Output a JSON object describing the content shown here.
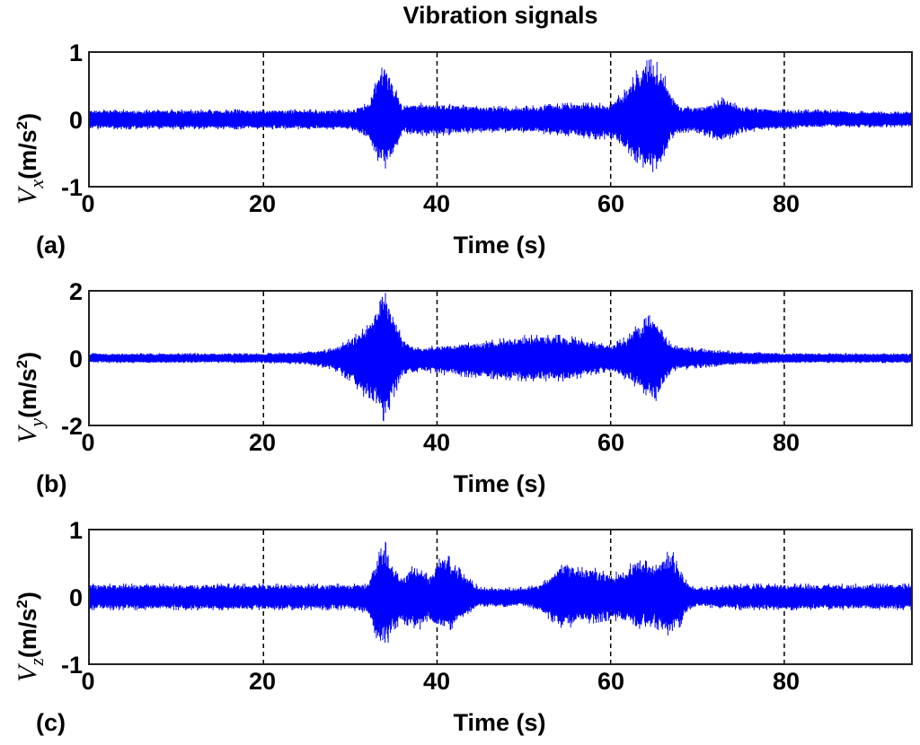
{
  "figure": {
    "title": "Vibration signals",
    "signal_color": "#0000ff",
    "grid_color": "#000000"
  },
  "panels": [
    {
      "label": "(a)",
      "ylabel_var": "V",
      "ylabel_sub": "x",
      "ylabel_unit": "(m/s",
      "ylabel_sup": "2",
      "ylabel_close": ")",
      "yticks": [
        "1",
        "0",
        "-1"
      ],
      "xticks": [
        "0",
        "20",
        "40",
        "60",
        "80"
      ],
      "xlabel": "Time (s)"
    },
    {
      "label": "(b)",
      "ylabel_var": "V",
      "ylabel_sub": "y",
      "ylabel_unit": "(m/s",
      "ylabel_sup": "2",
      "ylabel_close": ")",
      "yticks": [
        "2",
        "0",
        "-2"
      ],
      "xticks": [
        "0",
        "20",
        "40",
        "60",
        "80"
      ],
      "xlabel": "Time (s)"
    },
    {
      "label": "(c)",
      "ylabel_var": "V",
      "ylabel_sub": "z",
      "ylabel_unit": "(m/s",
      "ylabel_sup": "2",
      "ylabel_close": ")",
      "yticks": [
        "1",
        "0",
        "-1"
      ],
      "xticks": [
        "0",
        "20",
        "40",
        "60",
        "80"
      ],
      "xlabel": "Time (s)"
    }
  ],
  "chart_data": [
    {
      "type": "line",
      "title": "Vibration signals",
      "panel": "(a)",
      "xlabel": "Time (s)",
      "ylabel": "V_x (m/s^2)",
      "xlim": [
        0,
        94.6
      ],
      "ylim": [
        -1,
        1
      ],
      "xticks": [
        0,
        20,
        40,
        60,
        80
      ],
      "yticks": [
        -1,
        0,
        1
      ],
      "grid": "vertical dashed at x ticks",
      "series": [
        {
          "name": "V_x",
          "description": "noisy vibration envelope (approx. peak amplitude vs time)",
          "envelope_t": [
            0,
            10,
            20,
            30,
            32,
            33,
            34,
            35,
            36,
            38,
            40,
            45,
            50,
            55,
            58,
            60,
            62,
            63,
            64,
            65,
            66,
            67,
            68,
            70,
            72,
            73,
            75,
            80,
            85,
            90,
            94.6
          ],
          "envelope_upper": [
            0.15,
            0.15,
            0.15,
            0.15,
            0.25,
            0.6,
            0.88,
            0.55,
            0.2,
            0.25,
            0.25,
            0.2,
            0.2,
            0.25,
            0.25,
            0.25,
            0.5,
            0.75,
            0.88,
            0.92,
            0.75,
            0.4,
            0.2,
            0.2,
            0.25,
            0.35,
            0.2,
            0.15,
            0.15,
            0.12,
            0.12
          ],
          "envelope_lower": [
            -0.15,
            -0.15,
            -0.15,
            -0.15,
            -0.3,
            -0.6,
            -0.75,
            -0.55,
            -0.2,
            -0.25,
            -0.25,
            -0.2,
            -0.2,
            -0.25,
            -0.3,
            -0.3,
            -0.5,
            -0.65,
            -0.75,
            -0.8,
            -0.6,
            -0.3,
            -0.2,
            -0.2,
            -0.3,
            -0.35,
            -0.2,
            -0.15,
            -0.12,
            -0.12,
            -0.12
          ]
        }
      ]
    },
    {
      "type": "line",
      "panel": "(b)",
      "xlabel": "Time (s)",
      "ylabel": "V_y (m/s^2)",
      "xlim": [
        0,
        94.6
      ],
      "ylim": [
        -2,
        2
      ],
      "xticks": [
        0,
        20,
        40,
        60,
        80
      ],
      "yticks": [
        -2,
        0,
        2
      ],
      "grid": "vertical dashed at x ticks",
      "series": [
        {
          "name": "V_y",
          "description": "noisy vibration envelope (approx. peak amplitude vs time)",
          "envelope_t": [
            0,
            10,
            20,
            25,
            28,
            30,
            32,
            33,
            34,
            35,
            36,
            38,
            40,
            45,
            50,
            55,
            58,
            60,
            62,
            63,
            64,
            65,
            66,
            67,
            70,
            75,
            80,
            85,
            90,
            94.6
          ],
          "envelope_upper": [
            0.15,
            0.15,
            0.15,
            0.2,
            0.3,
            0.6,
            1.0,
            1.5,
            2.0,
            1.4,
            0.6,
            0.3,
            0.4,
            0.5,
            0.7,
            0.7,
            0.5,
            0.4,
            0.7,
            1.0,
            1.2,
            1.4,
            0.9,
            0.4,
            0.3,
            0.2,
            0.15,
            0.15,
            0.15,
            0.15
          ],
          "envelope_lower": [
            -0.15,
            -0.15,
            -0.15,
            -0.2,
            -0.35,
            -0.7,
            -1.3,
            -1.6,
            -1.95,
            -1.2,
            -0.6,
            -0.4,
            -0.5,
            -0.6,
            -0.7,
            -0.7,
            -0.5,
            -0.4,
            -0.7,
            -0.9,
            -1.1,
            -1.4,
            -0.9,
            -0.4,
            -0.3,
            -0.2,
            -0.15,
            -0.15,
            -0.15,
            -0.15
          ]
        }
      ]
    },
    {
      "type": "line",
      "panel": "(c)",
      "xlabel": "Time (s)",
      "ylabel": "V_z (m/s^2)",
      "xlim": [
        0,
        94.6
      ],
      "ylim": [
        -1,
        1
      ],
      "xticks": [
        0,
        20,
        40,
        60,
        80
      ],
      "yticks": [
        -1,
        0,
        1
      ],
      "grid": "vertical dashed at x ticks",
      "series": [
        {
          "name": "V_z",
          "description": "noisy vibration envelope (approx. peak amplitude vs time)",
          "envelope_t": [
            0,
            10,
            20,
            30,
            32,
            33,
            34,
            35,
            36,
            37,
            38,
            39,
            40,
            41,
            42,
            43,
            45,
            47,
            50,
            52,
            54,
            55,
            56,
            58,
            60,
            62,
            63,
            64,
            65,
            66,
            67,
            68,
            69,
            70,
            75,
            80,
            85,
            90,
            94.6
          ],
          "envelope_upper": [
            0.2,
            0.2,
            0.2,
            0.2,
            0.2,
            0.6,
            0.85,
            0.5,
            0.3,
            0.45,
            0.55,
            0.3,
            0.55,
            0.65,
            0.55,
            0.35,
            0.15,
            0.15,
            0.15,
            0.2,
            0.45,
            0.55,
            0.45,
            0.45,
            0.35,
            0.45,
            0.65,
            0.55,
            0.45,
            0.6,
            0.75,
            0.4,
            0.2,
            0.15,
            0.2,
            0.2,
            0.2,
            0.2,
            0.2
          ],
          "envelope_lower": [
            -0.2,
            -0.2,
            -0.2,
            -0.2,
            -0.25,
            -0.7,
            -0.8,
            -0.5,
            -0.4,
            -0.45,
            -0.5,
            -0.35,
            -0.5,
            -0.55,
            -0.45,
            -0.3,
            -0.15,
            -0.15,
            -0.15,
            -0.25,
            -0.45,
            -0.5,
            -0.4,
            -0.4,
            -0.35,
            -0.4,
            -0.5,
            -0.45,
            -0.45,
            -0.55,
            -0.6,
            -0.45,
            -0.2,
            -0.15,
            -0.2,
            -0.2,
            -0.2,
            -0.2,
            -0.2
          ]
        }
      ]
    }
  ]
}
